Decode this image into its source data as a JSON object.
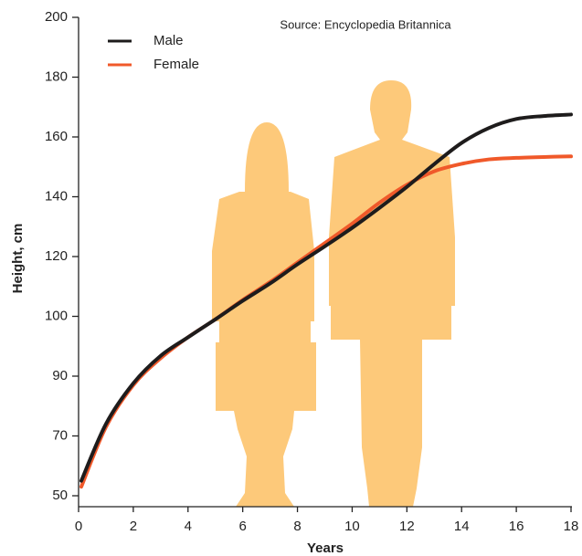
{
  "chart_data": {
    "type": "line",
    "source": "Source: Encyclopedia Britannica",
    "x_label": "Years",
    "y_label": "Height, cm",
    "x": [
      0.1,
      1,
      2,
      3,
      4,
      5,
      6,
      7,
      8,
      9,
      10,
      11,
      12,
      13,
      14,
      15,
      16,
      17,
      18
    ],
    "series": [
      {
        "name": "Male",
        "color": "#1e1c1c",
        "values": [
          55,
          74,
          87.6,
          93.4,
          96.5,
          99.5,
          105.2,
          111,
          117.4,
          123.4,
          129.6,
          136.3,
          143.3,
          150.9,
          158,
          163,
          166,
          167,
          167.5
        ]
      },
      {
        "name": "Female",
        "color": "#f0592a",
        "values": [
          53,
          73,
          87,
          93,
          96.5,
          99.5,
          105.5,
          111.5,
          118,
          124.5,
          131,
          138,
          144,
          148.5,
          151,
          152.5,
          153,
          153.3,
          153.5
        ]
      }
    ],
    "xlim": [
      0,
      18
    ],
    "xticks": [
      0,
      2,
      4,
      6,
      8,
      10,
      12,
      14,
      16,
      18
    ],
    "ylim": [
      50,
      200
    ],
    "yticks": [
      50,
      70,
      90,
      100,
      120,
      140,
      160,
      180,
      200
    ],
    "legend": "top-left"
  }
}
